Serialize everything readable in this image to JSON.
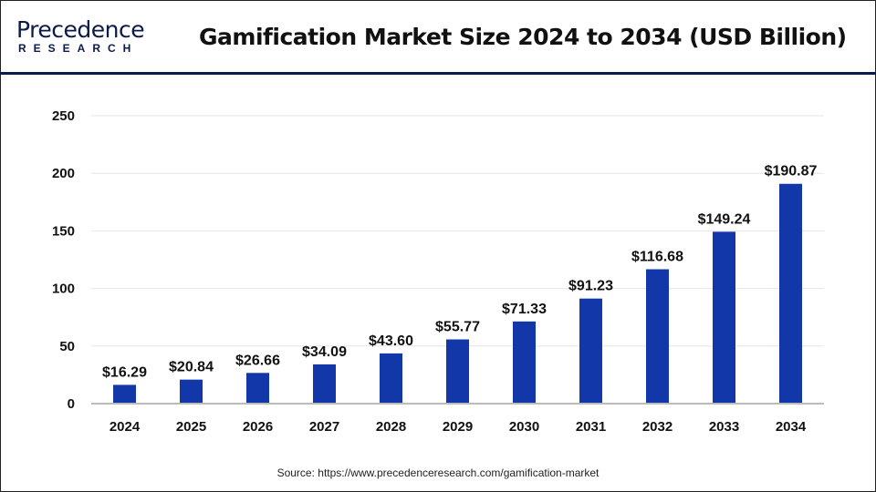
{
  "logo": {
    "top": "Precedence",
    "bottom": "RESEARCH"
  },
  "source": "Source: https://www.precedenceresearch.com/gamification-market",
  "colors": {
    "bar": "#1237a8",
    "grid": "#e6e6e6",
    "axis": "#bbbbbb",
    "header_line": "#0b1a4a"
  },
  "chart_data": {
    "type": "bar",
    "title": "Gamification Market Size 2024 to 2034 (USD Billion)",
    "xlabel": "",
    "ylabel": "",
    "ylim": [
      0,
      250
    ],
    "yticks": [
      0,
      50,
      100,
      150,
      200,
      250
    ],
    "grid": true,
    "categories": [
      "2024",
      "2025",
      "2026",
      "2027",
      "2028",
      "2029",
      "2030",
      "2031",
      "2032",
      "2033",
      "2034"
    ],
    "values": [
      16.29,
      20.84,
      26.66,
      34.09,
      43.6,
      55.77,
      71.33,
      91.23,
      116.68,
      149.24,
      190.87
    ],
    "data_labels": [
      "$16.29",
      "$20.84",
      "$26.66",
      "$34.09",
      "$43.60",
      "$55.77",
      "$71.33",
      "$91.23",
      "$116.68",
      "$149.24",
      "$190.87"
    ]
  }
}
